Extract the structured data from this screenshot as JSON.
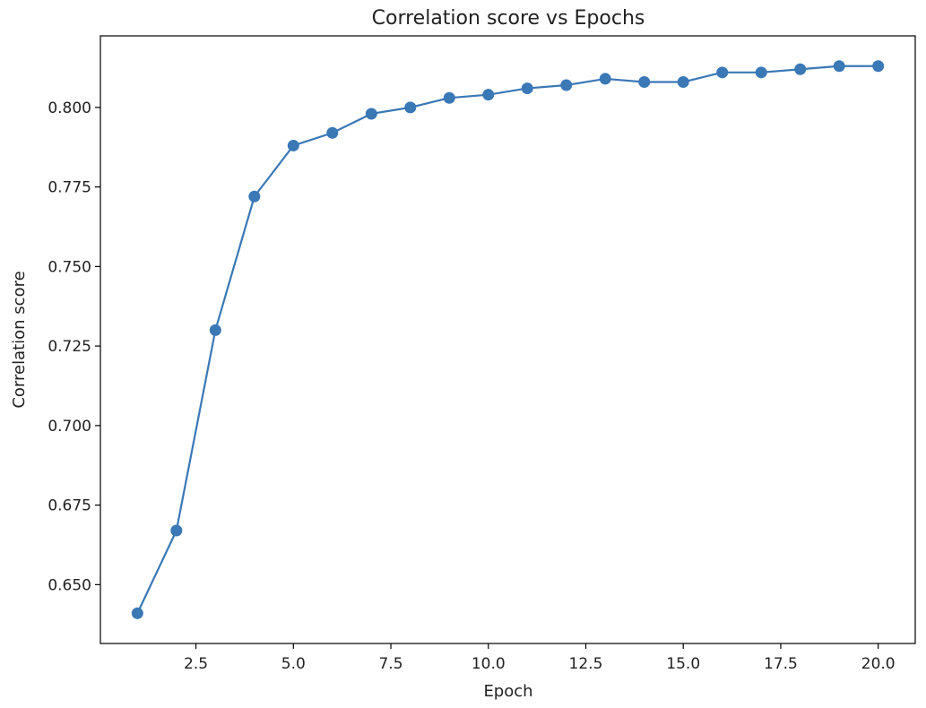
{
  "chart_data": {
    "type": "line",
    "title": "Correlation score vs Epochs",
    "xlabel": "Epoch",
    "ylabel": "Correlation score",
    "x": [
      1,
      2,
      3,
      4,
      5,
      6,
      7,
      8,
      9,
      10,
      11,
      12,
      13,
      14,
      15,
      16,
      17,
      18,
      19,
      20
    ],
    "series": [
      {
        "values": [
          0.641,
          0.667,
          0.73,
          0.772,
          0.788,
          0.792,
          0.798,
          0.8,
          0.803,
          0.804,
          0.806,
          0.807,
          0.809,
          0.808,
          0.808,
          0.811,
          0.811,
          0.812,
          0.813,
          0.813
        ],
        "color": "#3a78b6",
        "marker": "circle"
      }
    ],
    "xlim": [
      0.05,
      20.95
    ],
    "ylim": [
      0.6315,
      0.8225
    ],
    "xticks": [
      2.5,
      5.0,
      7.5,
      10.0,
      12.5,
      15.0,
      17.5,
      20.0
    ],
    "xtick_labels": [
      "2.5",
      "5.0",
      "7.5",
      "10.0",
      "12.5",
      "15.0",
      "17.5",
      "20.0"
    ],
    "yticks": [
      0.65,
      0.675,
      0.7,
      0.725,
      0.75,
      0.775,
      0.8
    ],
    "ytick_labels": [
      "0.650",
      "0.675",
      "0.700",
      "0.725",
      "0.750",
      "0.775",
      "0.800"
    ],
    "grid": false,
    "legend": "none"
  }
}
